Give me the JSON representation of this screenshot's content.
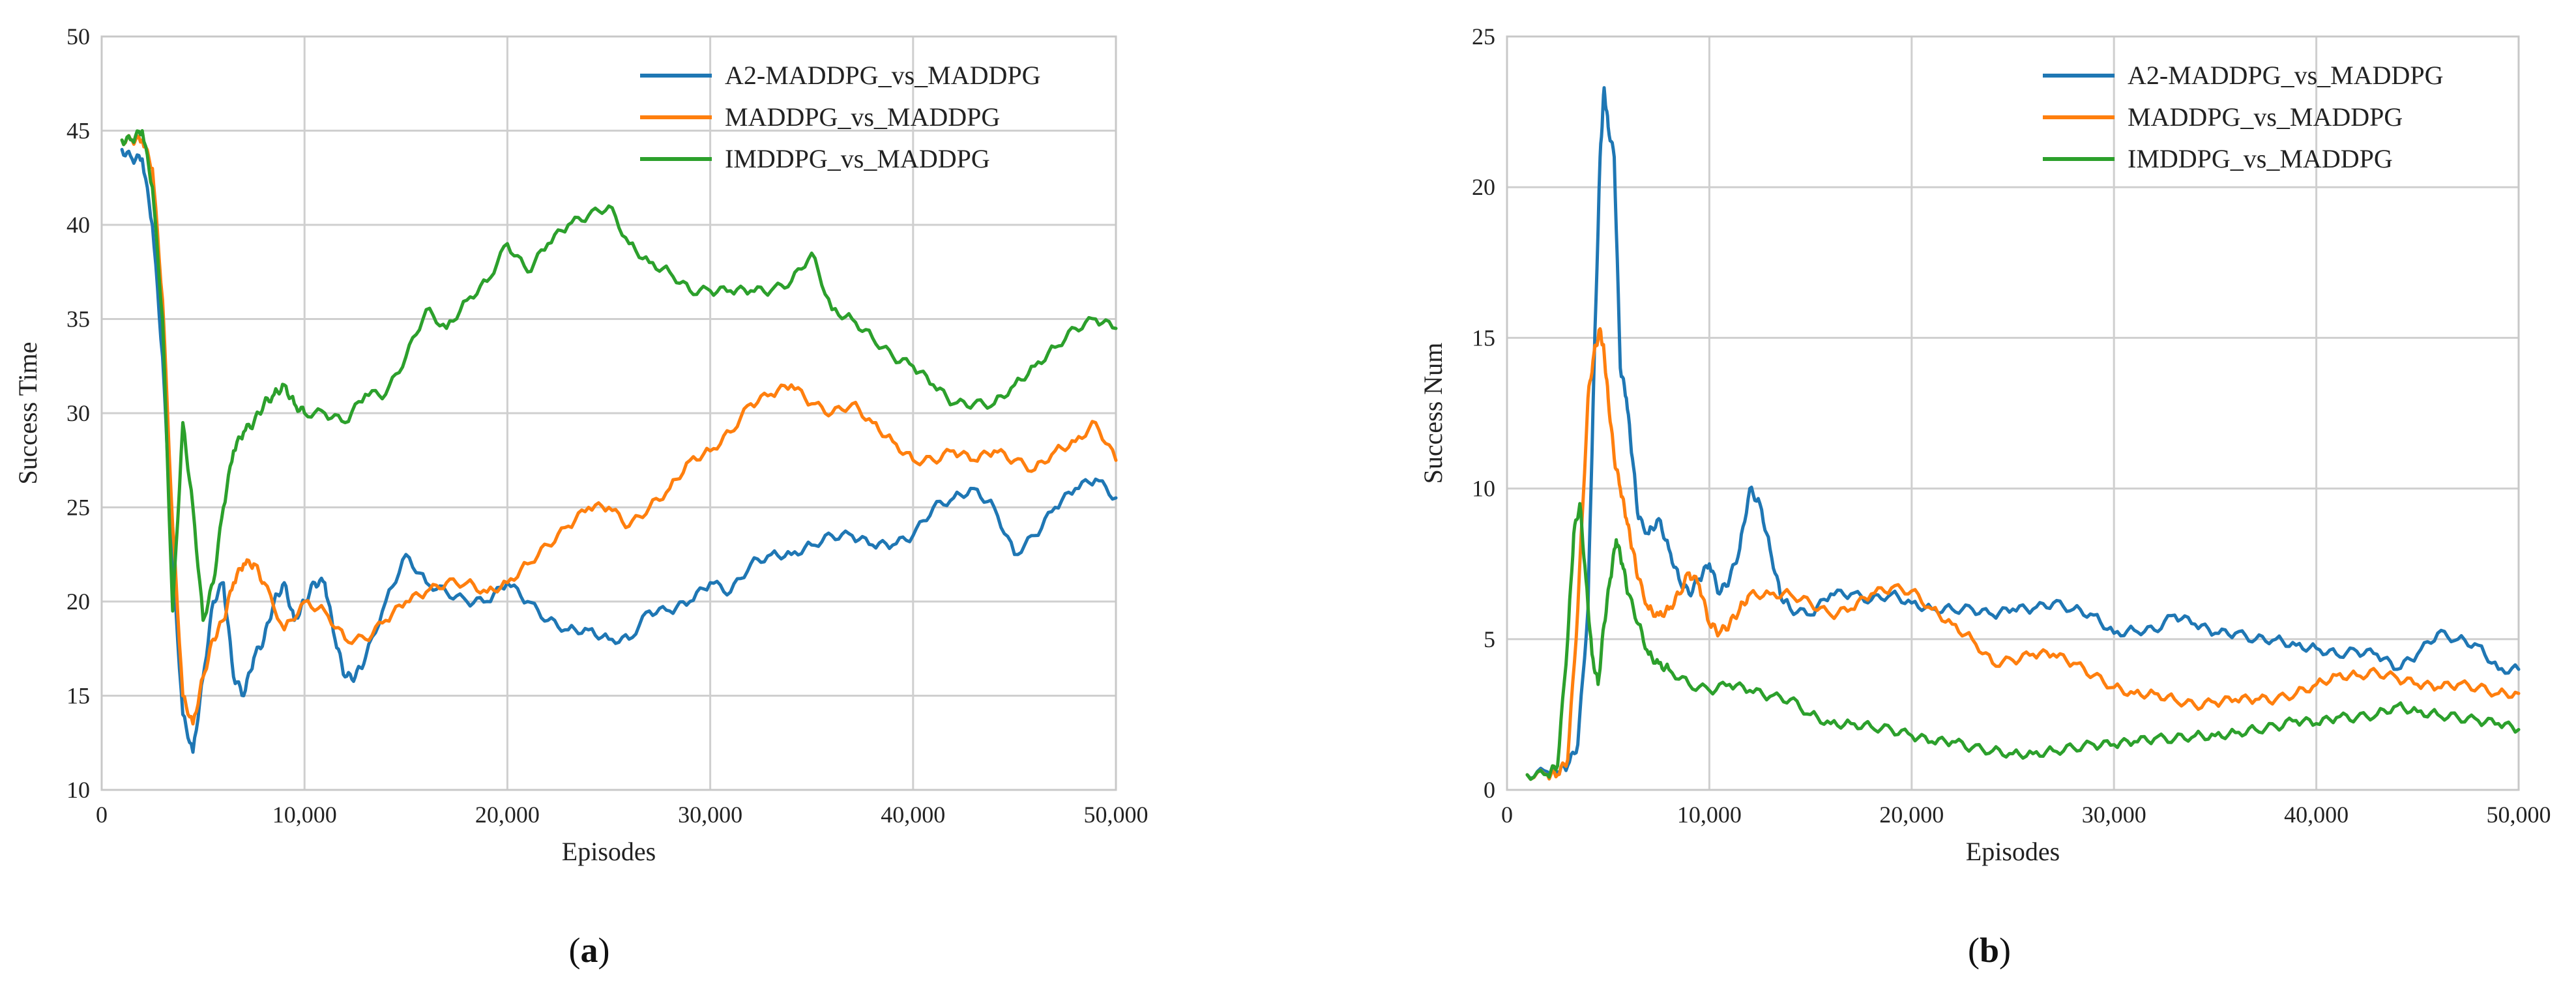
{
  "colors": {
    "blue": "#1f77b4",
    "orange": "#ff7f0e",
    "green": "#2ca02c"
  },
  "chart_data": [
    {
      "id": "a",
      "type": "line",
      "caption_letter": "a",
      "xlabel": "Episodes",
      "ylabel": "Success Time",
      "xlim": [
        0,
        50000
      ],
      "ylim": [
        10,
        50
      ],
      "xticks": [
        0,
        10000,
        20000,
        30000,
        40000,
        50000
      ],
      "xtick_labels": [
        "0",
        "10,000",
        "20,000",
        "30,000",
        "40,000",
        "50,000"
      ],
      "yticks": [
        10,
        15,
        20,
        25,
        30,
        35,
        40,
        45,
        50
      ],
      "ytick_labels": [
        "10",
        "15",
        "20",
        "25",
        "30",
        "35",
        "40",
        "45",
        "50"
      ],
      "legend_position": "top-right",
      "series": [
        {
          "name": "A2-MADDPG_vs_MADDPG",
          "color": "#1f77b4",
          "x": [
            1000,
            1500,
            2000,
            2500,
            3000,
            3500,
            4000,
            4500,
            5000,
            5500,
            6000,
            6500,
            7000,
            7500,
            8000,
            8500,
            9000,
            9500,
            10000,
            10500,
            11000,
            11500,
            12000,
            12500,
            13000,
            14000,
            15000,
            16000,
            17000,
            18000,
            19000,
            20000,
            21000,
            22000,
            23000,
            24000,
            25000,
            26000,
            27000,
            28000,
            29000,
            30000,
            31000,
            32000,
            33000,
            34000,
            35000,
            36000,
            37000,
            38000,
            39000,
            40000,
            41000,
            42000,
            43000,
            44000,
            45000,
            46000,
            47000,
            48000,
            49000,
            50000
          ],
          "y": [
            44,
            43.5,
            43.5,
            40,
            33,
            22,
            14,
            12,
            16,
            20,
            21,
            16,
            15,
            17,
            18,
            20,
            21,
            19,
            20,
            21,
            21,
            18,
            16,
            16,
            17,
            20,
            22.5,
            21,
            20.5,
            20,
            20,
            21,
            20,
            19,
            18.5,
            18.5,
            18,
            18,
            19.5,
            19.5,
            20,
            21,
            20.5,
            22,
            22.5,
            22.5,
            23,
            23.5,
            23.5,
            23,
            23,
            23.5,
            25,
            25.5,
            26,
            25,
            22.5,
            23.5,
            25,
            26,
            26.5,
            25.5
          ]
        },
        {
          "name": "MADDPG_vs_MADDPG",
          "color": "#ff7f0e",
          "x": [
            1000,
            1500,
            2000,
            2500,
            3000,
            3500,
            4000,
            4500,
            5000,
            5500,
            6000,
            6500,
            7000,
            7500,
            8000,
            9000,
            10000,
            11000,
            12000,
            13000,
            14000,
            15000,
            16000,
            17000,
            18000,
            19000,
            20000,
            21000,
            22000,
            23000,
            24000,
            25000,
            26000,
            27000,
            28000,
            29000,
            30000,
            31000,
            32000,
            33000,
            34000,
            35000,
            36000,
            37000,
            38000,
            39000,
            40000,
            41000,
            42000,
            43000,
            44000,
            45000,
            46000,
            47000,
            48000,
            49000,
            50000
          ],
          "y": [
            44.5,
            44.5,
            44.5,
            43,
            36,
            24,
            15,
            13.5,
            16,
            18,
            19,
            21,
            22,
            22,
            21,
            18.5,
            20,
            19.5,
            18,
            18,
            19,
            20,
            20.5,
            21,
            21,
            20.5,
            21,
            22,
            23,
            24,
            25,
            25,
            24,
            25,
            26,
            27.5,
            28,
            29,
            30.5,
            31,
            31.5,
            30.5,
            30,
            30.5,
            29.5,
            28.5,
            27.5,
            27.5,
            28,
            27.5,
            28,
            27.5,
            27,
            28,
            28.5,
            29.5,
            27.5
          ]
        },
        {
          "name": "IMDDPG_vs_MADDPG",
          "color": "#2ca02c",
          "x": [
            1000,
            1500,
            2000,
            2500,
            3000,
            3500,
            4000,
            4500,
            5000,
            5500,
            6000,
            6500,
            7000,
            7500,
            8000,
            8500,
            9000,
            9500,
            10000,
            11000,
            12000,
            13000,
            14000,
            15000,
            16000,
            17000,
            18000,
            19000,
            20000,
            21000,
            22000,
            23000,
            24000,
            25000,
            26000,
            27000,
            28000,
            29000,
            30000,
            31000,
            32000,
            33000,
            34000,
            35000,
            36000,
            37000,
            38000,
            39000,
            40000,
            41000,
            42000,
            43000,
            44000,
            45000,
            46000,
            47000,
            48000,
            49000,
            50000
          ],
          "y": [
            44.5,
            44.5,
            45,
            42,
            35,
            19.5,
            29.5,
            25,
            19,
            21,
            25,
            28,
            29,
            29.5,
            30.5,
            31,
            31.5,
            30.5,
            30,
            30,
            29.5,
            31,
            31,
            33,
            35.5,
            34.5,
            36,
            37,
            39,
            37.5,
            39,
            40,
            40.5,
            41,
            39,
            38,
            37.5,
            36.5,
            36.5,
            36.5,
            36.5,
            36.5,
            37,
            38.5,
            35.5,
            35,
            34,
            33,
            32.5,
            31.5,
            30.5,
            30.5,
            30.5,
            31.5,
            32.5,
            33.5,
            34.5,
            35,
            34.5
          ]
        }
      ]
    },
    {
      "id": "b",
      "type": "line",
      "caption_letter": "b",
      "xlabel": "Episodes",
      "ylabel": "Success Num",
      "xlim": [
        0,
        50000
      ],
      "ylim": [
        0,
        25
      ],
      "xticks": [
        0,
        10000,
        20000,
        30000,
        40000,
        50000
      ],
      "xtick_labels": [
        "0",
        "10,000",
        "20,000",
        "30,000",
        "40,000",
        "50,000"
      ],
      "yticks": [
        0,
        5,
        10,
        15,
        20,
        25
      ],
      "ytick_labels": [
        "0",
        "5",
        "10",
        "15",
        "20",
        "25"
      ],
      "legend_position": "top-right",
      "series": [
        {
          "name": "A2-MADDPG_vs_MADDPG",
          "color": "#1f77b4",
          "x": [
            1000,
            2000,
            2500,
            3000,
            3500,
            4000,
            4300,
            4600,
            4800,
            5000,
            5300,
            5600,
            5900,
            6200,
            6500,
            7000,
            7500,
            8000,
            8500,
            9000,
            9500,
            10000,
            10500,
            11000,
            11500,
            12000,
            12500,
            13000,
            13500,
            14000,
            15000,
            16000,
            17000,
            18000,
            19000,
            20000,
            21000,
            22000,
            23000,
            24000,
            25000,
            26000,
            27000,
            28000,
            29000,
            30000,
            31000,
            32000,
            33000,
            34000,
            35000,
            36000,
            37000,
            38000,
            39000,
            40000,
            41000,
            42000,
            43000,
            44000,
            45000,
            46000,
            47000,
            48000,
            49000,
            50000
          ],
          "y": [
            0.5,
            0.6,
            0.6,
            0.8,
            1.5,
            6,
            14,
            21,
            23.3,
            22,
            21,
            14,
            13,
            11,
            9,
            8.5,
            9,
            8,
            7,
            6.5,
            7,
            7.5,
            6.5,
            7,
            8,
            10,
            9.5,
            8,
            6.5,
            6,
            5.8,
            6.5,
            6.5,
            6.3,
            6.5,
            6.2,
            6.0,
            6.0,
            6.0,
            5.8,
            6.0,
            6.0,
            6.2,
            6.0,
            5.8,
            5.2,
            5.3,
            5.3,
            5.8,
            5.5,
            5.2,
            5.2,
            5.0,
            5.0,
            4.8,
            4.7,
            4.5,
            4.6,
            4.5,
            4.0,
            4.5,
            5.2,
            5.0,
            4.8,
            4.0,
            4.0
          ]
        },
        {
          "name": "MADDPG_vs_MADDPG",
          "color": "#ff7f0e",
          "x": [
            1000,
            2000,
            2500,
            3000,
            3500,
            4000,
            4300,
            4600,
            4800,
            5000,
            5300,
            5600,
            5900,
            6200,
            6500,
            7000,
            7500,
            8000,
            8500,
            9000,
            9500,
            10000,
            10500,
            11000,
            11500,
            12000,
            13000,
            14000,
            15000,
            16000,
            17000,
            18000,
            19000,
            20000,
            21000,
            22000,
            23000,
            24000,
            25000,
            26000,
            27000,
            28000,
            29000,
            30000,
            31000,
            32000,
            33000,
            34000,
            35000,
            36000,
            37000,
            38000,
            39000,
            40000,
            41000,
            42000,
            43000,
            44000,
            45000,
            46000,
            47000,
            48000,
            49000,
            50000
          ],
          "y": [
            0.5,
            0.5,
            0.5,
            1,
            6,
            13,
            14.5,
            15.3,
            14.5,
            13,
            11,
            10,
            9,
            8,
            7,
            6,
            5.8,
            6,
            6.5,
            7.2,
            6.8,
            5.5,
            5.2,
            5.5,
            6,
            6.5,
            6.5,
            6.5,
            6.2,
            5.8,
            6,
            6.5,
            6.7,
            6.6,
            6,
            5.5,
            5,
            4.2,
            4.3,
            4.5,
            4.5,
            4.2,
            3.8,
            3.4,
            3.2,
            3.2,
            3.0,
            2.8,
            2.9,
            3.0,
            3.0,
            3.0,
            3.2,
            3.5,
            3.8,
            3.8,
            3.9,
            3.7,
            3.5,
            3.4,
            3.5,
            3.4,
            3.2,
            3.2
          ]
        },
        {
          "name": "IMDDPG_vs_MADDPG",
          "color": "#2ca02c",
          "x": [
            1000,
            2000,
            2500,
            3000,
            3300,
            3600,
            3900,
            4200,
            4500,
            4800,
            5100,
            5400,
            5700,
            6000,
            6500,
            7000,
            7500,
            8000,
            9000,
            10000,
            11000,
            12000,
            13000,
            14000,
            15000,
            16000,
            17000,
            18000,
            19000,
            20000,
            21000,
            22000,
            23000,
            24000,
            25000,
            26000,
            27000,
            28000,
            29000,
            30000,
            31000,
            32000,
            33000,
            34000,
            35000,
            36000,
            37000,
            38000,
            39000,
            40000,
            41000,
            42000,
            43000,
            44000,
            45000,
            46000,
            47000,
            48000,
            49000,
            50000
          ],
          "y": [
            0.5,
            0.5,
            0.8,
            5,
            8.5,
            9.5,
            7,
            4.5,
            3.5,
            5.5,
            7,
            8.3,
            7.5,
            6.5,
            5.5,
            4.5,
            4.2,
            4.0,
            3.5,
            3.3,
            3.5,
            3.3,
            3.1,
            3.0,
            2.5,
            2.2,
            2.2,
            2.1,
            2.0,
            1.8,
            1.6,
            1.6,
            1.4,
            1.3,
            1.2,
            1.2,
            1.3,
            1.4,
            1.5,
            1.5,
            1.6,
            1.7,
            1.7,
            1.8,
            1.8,
            1.9,
            2.0,
            2.1,
            2.3,
            2.2,
            2.4,
            2.4,
            2.5,
            2.8,
            2.6,
            2.5,
            2.4,
            2.3,
            2.2,
            2.0
          ]
        }
      ]
    }
  ]
}
